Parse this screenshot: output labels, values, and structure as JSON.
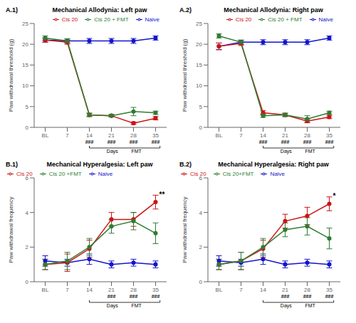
{
  "chart_data": [
    {
      "type": "line",
      "panel_label": "A.1)",
      "title": "Mechanical Allodynia: Left paw",
      "y_label": "Paw withdrawal threshold (g)",
      "categories": [
        "BL",
        "7",
        "14",
        "21",
        "28",
        "35"
      ],
      "series": [
        {
          "name": "Naive",
          "color": "#1414CC",
          "values": [
            21.0,
            20.8,
            20.8,
            20.8,
            20.8,
            21.5
          ],
          "errors": [
            0.5,
            0.5,
            0.6,
            0.6,
            0.6,
            0.5
          ]
        },
        {
          "name": "Cis 20",
          "color": "#CC1414",
          "values": [
            21.0,
            20.5,
            3.0,
            2.8,
            1.0,
            2.2
          ],
          "errors": [
            0.5,
            0.5,
            0.4,
            0.3,
            0.3,
            0.4
          ]
        },
        {
          "name": "Cis 20 + FMT",
          "color": "#2E7D32",
          "values": [
            21.5,
            20.8,
            3.0,
            2.8,
            3.8,
            3.5
          ],
          "errors": [
            0.5,
            0.5,
            0.4,
            0.3,
            1.0,
            0.4
          ]
        }
      ],
      "ylim": [
        0,
        25
      ],
      "yticks": [
        0,
        5,
        10,
        15,
        20,
        25
      ],
      "grid": false,
      "legend": "upper right",
      "marker": "circle",
      "annotations": [
        {
          "text": "###",
          "x": "14"
        },
        {
          "text": "###",
          "x": "21"
        },
        {
          "text": "###",
          "x": "28"
        },
        {
          "text": "###",
          "x": "35"
        }
      ],
      "bracket": {
        "from": "14",
        "to": "35",
        "labels": [
          "Days",
          "FMT"
        ]
      }
    },
    {
      "type": "line",
      "panel_label": "A.2)",
      "title": "Mechanical Allodynia: Right paw",
      "y_label": "Paw withdrawal threshold (g)",
      "categories": [
        "BL",
        "7",
        "14",
        "21",
        "28",
        "35"
      ],
      "series": [
        {
          "name": "Naive",
          "color": "#1414CC",
          "values": [
            19.5,
            20.5,
            20.5,
            20.5,
            20.5,
            21.5
          ],
          "errors": [
            0.8,
            0.5,
            0.6,
            0.6,
            0.6,
            0.5
          ]
        },
        {
          "name": "Cis 20",
          "color": "#CC1414",
          "values": [
            19.5,
            20.2,
            3.5,
            3.0,
            1.5,
            2.5
          ],
          "errors": [
            0.8,
            0.5,
            0.5,
            0.4,
            0.4,
            0.4
          ]
        },
        {
          "name": "Cis 20 + FMT",
          "color": "#2E7D32",
          "values": [
            22.0,
            20.5,
            2.8,
            3.0,
            2.0,
            3.5
          ],
          "errors": [
            0.5,
            0.5,
            0.4,
            0.4,
            0.8,
            0.4
          ]
        }
      ],
      "ylim": [
        0,
        25
      ],
      "yticks": [
        0,
        5,
        10,
        15,
        20,
        25
      ],
      "grid": false,
      "legend": "upper right",
      "marker": "circle",
      "annotations": [
        {
          "text": "###",
          "x": "14"
        },
        {
          "text": "###",
          "x": "21"
        },
        {
          "text": "###",
          "x": "28"
        },
        {
          "text": "###",
          "x": "35"
        }
      ],
      "bracket": {
        "from": "14",
        "to": "35",
        "labels": [
          "Days",
          "FMT"
        ]
      }
    },
    {
      "type": "line",
      "panel_label": "B.1)",
      "title": "Mechanical Hyperalgesia: Left paw",
      "y_label": "Paw withdrawal frequency",
      "categories": [
        "BL",
        "7",
        "14",
        "21",
        "28",
        "35"
      ],
      "series": [
        {
          "name": "Naive",
          "color": "#1414CC",
          "values": [
            1.2,
            1.1,
            1.3,
            1.0,
            1.1,
            1.0
          ],
          "errors": [
            0.3,
            0.2,
            0.3,
            0.2,
            0.2,
            0.2
          ]
        },
        {
          "name": "Cis 20",
          "color": "#CC1414",
          "values": [
            1.0,
            1.1,
            1.9,
            3.6,
            3.6,
            4.6
          ],
          "errors": [
            0.3,
            0.5,
            0.5,
            0.4,
            0.4,
            0.4
          ]
        },
        {
          "name": "Cis 20 +FMT",
          "color": "#2E7D32",
          "values": [
            1.0,
            1.2,
            2.0,
            3.2,
            3.5,
            2.8
          ],
          "errors": [
            0.3,
            0.5,
            0.5,
            0.4,
            0.5,
            0.6
          ]
        }
      ],
      "ylim": [
        0,
        6
      ],
      "yticks": [
        0,
        2,
        4,
        6
      ],
      "grid": false,
      "legend": "upper left",
      "marker": "circle",
      "annotations": [
        {
          "text": "###",
          "x": "21"
        },
        {
          "text": "###",
          "x": "28"
        },
        {
          "text": "###",
          "x": "35"
        },
        {
          "text": "**",
          "x": "35",
          "y": 5.05
        }
      ],
      "bracket": {
        "from": "14",
        "to": "35",
        "labels": [
          "Days",
          "FMT"
        ]
      }
    },
    {
      "type": "line",
      "panel_label": "B.2)",
      "title": "Mechanical Hyperalgesia: Right paw",
      "y_label": "Paw withdrawal frequency",
      "categories": [
        "BL",
        "7",
        "14",
        "21",
        "28",
        "35"
      ],
      "series": [
        {
          "name": "Naive",
          "color": "#1414CC",
          "values": [
            1.2,
            1.1,
            1.3,
            1.0,
            1.1,
            1.0
          ],
          "errors": [
            0.3,
            0.2,
            0.3,
            0.2,
            0.2,
            0.2
          ]
        },
        {
          "name": "Cis 20",
          "color": "#CC1414",
          "values": [
            1.0,
            1.2,
            1.9,
            3.5,
            3.8,
            4.5
          ],
          "errors": [
            0.3,
            0.5,
            0.5,
            0.4,
            0.5,
            0.4
          ]
        },
        {
          "name": "Cis 20+FMT",
          "color": "#2E7D32",
          "values": [
            1.0,
            1.2,
            2.0,
            3.0,
            3.2,
            2.5
          ],
          "errors": [
            0.3,
            0.5,
            0.5,
            0.4,
            0.5,
            0.6
          ]
        }
      ],
      "ylim": [
        0,
        6
      ],
      "yticks": [
        0,
        2,
        4,
        6
      ],
      "grid": false,
      "legend": "upper left",
      "marker": "circle",
      "annotations": [
        {
          "text": "###",
          "x": "21"
        },
        {
          "text": "###",
          "x": "28"
        },
        {
          "text": "###",
          "x": "35"
        },
        {
          "text": "*",
          "x": "35",
          "y": 4.95
        }
      ],
      "bracket": {
        "from": "14",
        "to": "35",
        "labels": [
          "Days",
          "FMT"
        ]
      }
    }
  ]
}
